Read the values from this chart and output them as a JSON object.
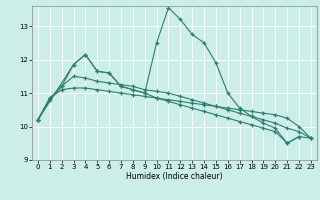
{
  "xlabel": "Humidex (Indice chaleur)",
  "bg_color": "#cceee8",
  "grid_color": "#ffffff",
  "line_color": "#2e7d6e",
  "xlim": [
    -0.5,
    23.5
  ],
  "ylim": [
    9.0,
    13.6
  ],
  "yticks": [
    9,
    10,
    11,
    12,
    13
  ],
  "xticks": [
    0,
    1,
    2,
    3,
    4,
    5,
    6,
    7,
    8,
    9,
    10,
    11,
    12,
    13,
    14,
    15,
    16,
    17,
    18,
    19,
    20,
    21,
    22,
    23
  ],
  "line1_x": [
    0,
    1,
    2,
    3,
    4,
    5,
    6,
    7,
    8,
    9,
    10,
    11,
    12,
    13,
    14,
    15,
    16,
    17,
    18,
    19,
    20,
    21,
    22
  ],
  "line1_y": [
    10.2,
    10.85,
    11.2,
    11.85,
    12.15,
    11.65,
    11.6,
    11.2,
    11.1,
    11.0,
    12.5,
    13.55,
    13.2,
    12.75,
    12.5,
    11.9,
    11.0,
    10.55,
    10.3,
    10.1,
    9.95,
    9.5,
    9.7
  ],
  "line2_x": [
    0,
    1,
    2,
    3,
    4,
    5,
    6,
    7,
    8,
    9,
    10,
    11,
    12,
    13,
    14,
    15,
    16,
    17,
    18,
    19,
    20,
    21,
    22,
    23
  ],
  "line2_y": [
    10.2,
    10.85,
    11.1,
    11.15,
    11.15,
    11.1,
    11.05,
    11.0,
    10.95,
    10.9,
    10.85,
    10.8,
    10.75,
    10.7,
    10.65,
    10.6,
    10.55,
    10.5,
    10.45,
    10.4,
    10.35,
    10.25,
    10.0,
    9.65
  ],
  "line3_x": [
    0,
    1,
    2,
    3,
    4,
    5,
    6,
    7,
    8,
    9,
    10,
    11,
    12,
    13,
    14,
    15,
    16,
    17,
    18,
    19,
    20,
    21,
    22,
    23
  ],
  "line3_y": [
    10.2,
    10.8,
    11.2,
    11.5,
    11.45,
    11.35,
    11.3,
    11.25,
    11.2,
    11.1,
    11.05,
    11.0,
    10.9,
    10.8,
    10.7,
    10.6,
    10.5,
    10.4,
    10.3,
    10.2,
    10.1,
    9.95,
    9.85,
    9.65
  ],
  "line4_x": [
    0,
    3,
    4,
    5,
    6,
    7,
    8,
    9,
    10,
    11,
    12,
    13,
    14,
    15,
    16,
    17,
    18,
    19,
    20,
    21,
    22,
    23
  ],
  "line4_y": [
    10.2,
    11.85,
    12.15,
    11.65,
    11.6,
    11.2,
    11.1,
    11.0,
    10.85,
    10.75,
    10.65,
    10.55,
    10.45,
    10.35,
    10.25,
    10.15,
    10.05,
    9.95,
    9.85,
    9.5,
    9.7,
    9.65
  ]
}
